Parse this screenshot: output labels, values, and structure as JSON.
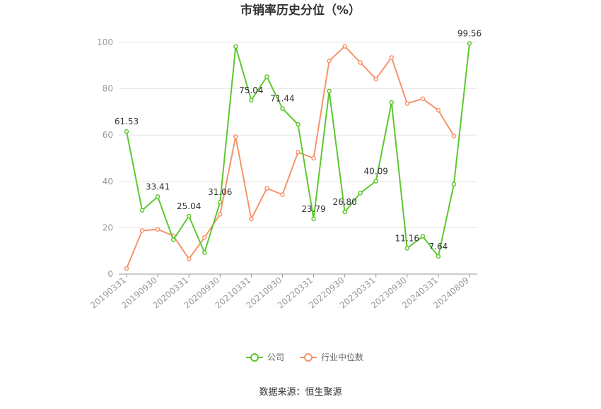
{
  "chart_data": {
    "type": "line",
    "title": "市销率历史分位（%）",
    "source": "数据来源：恒生聚源",
    "ylim": [
      0,
      100
    ],
    "yticks": [
      0,
      20,
      40,
      60,
      80,
      100
    ],
    "x_tick_labels": [
      "20190331",
      "20190930",
      "20200331",
      "20200930",
      "20210331",
      "20210930",
      "20220331",
      "20220930",
      "20230331",
      "20230930",
      "20240331",
      "20240809"
    ],
    "x": [
      "20190331",
      "20190630",
      "20190930",
      "20191231",
      "20200331",
      "20200630",
      "20200930",
      "20201231",
      "20210331",
      "20210630",
      "20210930",
      "20211231",
      "20220331",
      "20220630",
      "20220930",
      "20221231",
      "20230331",
      "20230630",
      "20230930",
      "20231231",
      "20240331",
      "20240630",
      "20240809"
    ],
    "grid": true,
    "legend_position": "bottom",
    "series": [
      {
        "name": "公司",
        "color": "#5cc82e",
        "values": [
          61.53,
          27.5,
          33.41,
          14.8,
          25.04,
          9.3,
          31.06,
          98.2,
          75.04,
          85.2,
          71.44,
          64.6,
          23.79,
          79.0,
          26.8,
          35.0,
          40.09,
          74.1,
          11.16,
          16.3,
          7.64,
          38.8,
          99.56
        ],
        "labels": {
          "0": "61.53",
          "2": "33.41",
          "4": "25.04",
          "6": "31.06",
          "8": "75.04",
          "10": "71.44",
          "12": "23.79",
          "14": "26.80",
          "16": "40.09",
          "18": "11.16",
          "20": "7.64",
          "22": "99.56"
        }
      },
      {
        "name": "行业中位数",
        "color": "#f5946a",
        "values": [
          2.4,
          18.8,
          19.3,
          16.5,
          6.6,
          15.8,
          25.8,
          59.3,
          23.8,
          37.0,
          34.3,
          52.6,
          50.0,
          92.0,
          98.3,
          91.3,
          84.2,
          93.5,
          73.6,
          75.7,
          70.7,
          59.6,
          null
        ]
      }
    ]
  }
}
